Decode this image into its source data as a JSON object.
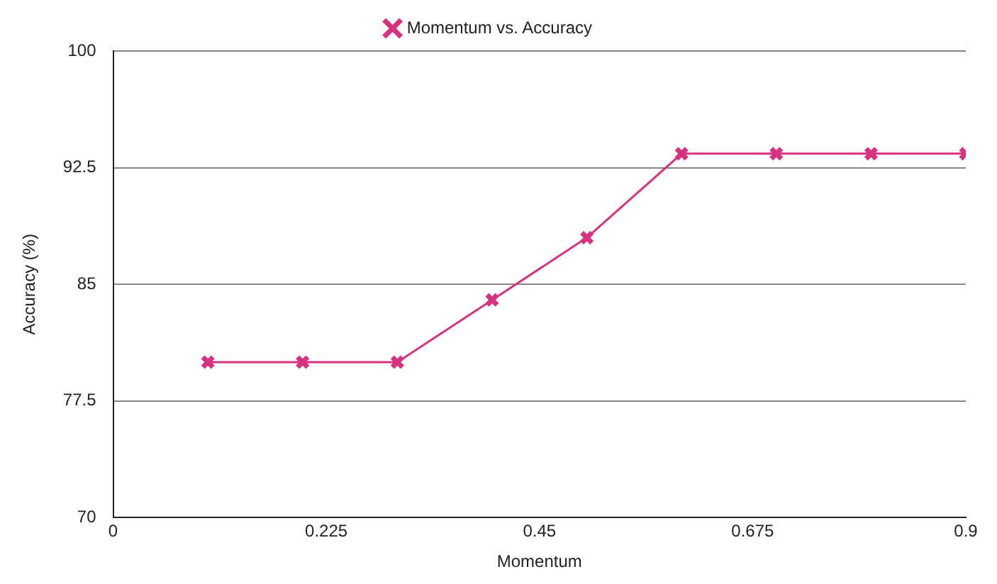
{
  "chart_data": {
    "type": "line",
    "xlabel": "Momentum",
    "ylabel": "Accuracy (%)",
    "x": [
      0.1,
      0.2,
      0.3,
      0.4,
      0.5,
      0.6,
      0.7,
      0.8,
      0.9
    ],
    "series": [
      {
        "name": "Momentum vs. Accuracy",
        "color": "#d6327f",
        "values": [
          80,
          80,
          80,
          84,
          88,
          93.4,
          93.4,
          93.4,
          93.4
        ]
      }
    ],
    "xlim": [
      0,
      0.9
    ],
    "xticks": [
      0,
      0.225,
      0.45,
      0.675,
      0.9
    ],
    "ylim": [
      70,
      100
    ],
    "yticks": [
      70,
      77.5,
      85,
      92.5,
      100
    ],
    "grid": "y",
    "legend": "top",
    "marker": "cross",
    "line_style": "solid"
  }
}
